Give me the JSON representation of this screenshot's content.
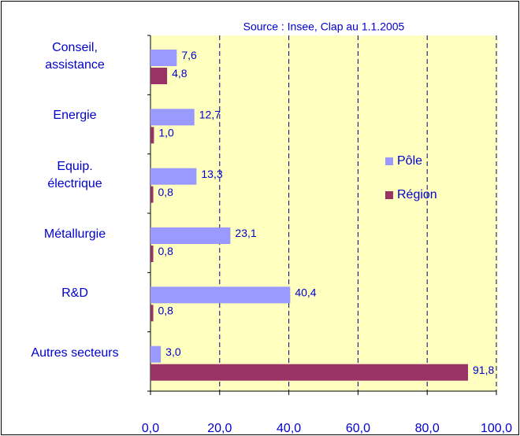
{
  "chart_data": {
    "type": "bar",
    "orientation": "horizontal",
    "title": "Source : Insee, Clap au 1.1.2005",
    "categories": [
      "Conseil,\nassistance",
      "Energie",
      "Equip.\nélectrique",
      "Métallurgie",
      "R&D",
      "Autres secteurs"
    ],
    "series": [
      {
        "name": "Pôle",
        "color": "#9999ff",
        "values": [
          7.6,
          12.7,
          13.3,
          23.1,
          40.4,
          3.0
        ],
        "value_labels": [
          "7,6",
          "12,7",
          "13,3",
          "23,1",
          "40,4",
          "3,0"
        ]
      },
      {
        "name": "Région",
        "color": "#993366",
        "values": [
          4.8,
          1.0,
          0.8,
          0.8,
          0.8,
          91.8
        ],
        "value_labels": [
          "4,8",
          "1,0",
          "0,8",
          "0,8",
          "0,8",
          "91,8"
        ]
      }
    ],
    "xlim": [
      0,
      100
    ],
    "xticks": [
      {
        "value": 0,
        "label": "0,0"
      },
      {
        "value": 20,
        "label": "20,0"
      },
      {
        "value": 40,
        "label": "40,0"
      },
      {
        "value": 60,
        "label": "60,0"
      },
      {
        "value": 80,
        "label": "80,0"
      },
      {
        "value": 100,
        "label": "100,0"
      }
    ],
    "grid": true,
    "legend": "right"
  }
}
